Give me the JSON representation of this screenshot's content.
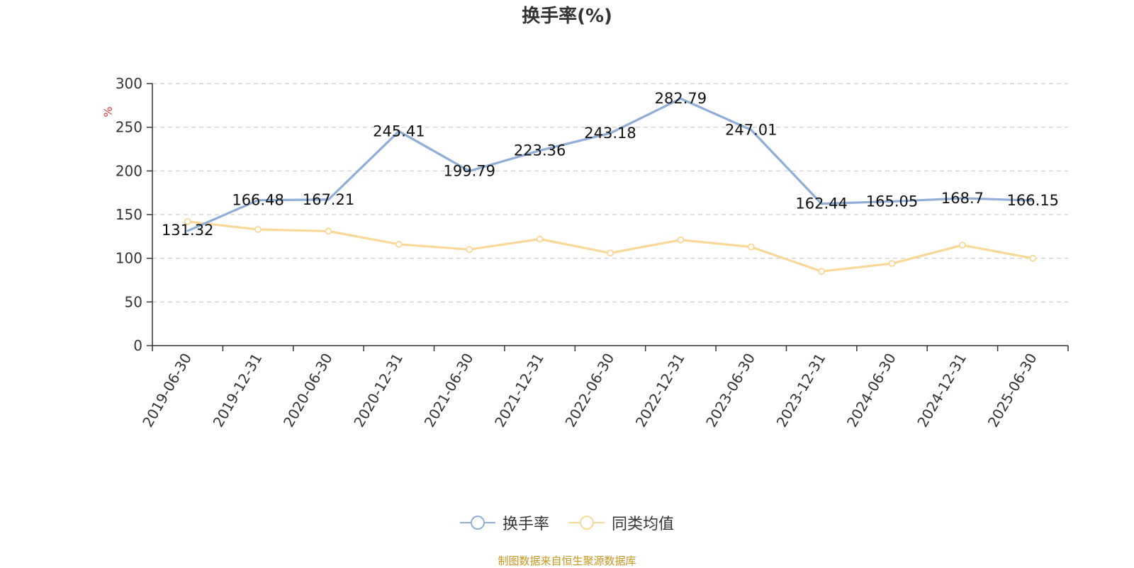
{
  "chart_data": {
    "type": "line",
    "title": "换手率(%)",
    "ylabel": "%",
    "ylim": [
      0,
      300
    ],
    "yticks": [
      0,
      50,
      100,
      150,
      200,
      250,
      300
    ],
    "grid": true,
    "legend_position": "bottom",
    "categories": [
      "2019-06-30",
      "2019-12-31",
      "2020-06-30",
      "2020-12-31",
      "2021-06-30",
      "2021-12-31",
      "2022-06-30",
      "2022-12-31",
      "2023-06-30",
      "2023-12-31",
      "2024-06-30",
      "2024-12-31",
      "2025-06-30"
    ],
    "series": [
      {
        "name": "换手率",
        "color": "#8eaed8",
        "values": [
          131.32,
          166.48,
          167.21,
          245.41,
          199.79,
          223.36,
          243.18,
          282.79,
          247.01,
          162.44,
          165.05,
          168.7,
          166.15
        ],
        "labels": [
          "131.32",
          "166.48",
          "167.21",
          "245.41",
          "199.79",
          "223.36",
          "243.18",
          "282.79",
          "247.01",
          "162.44",
          "165.05",
          "168.7",
          "166.15"
        ]
      },
      {
        "name": "同类均值",
        "color": "#fad797",
        "values": [
          142,
          133,
          131,
          116,
          110,
          122,
          106,
          121,
          113,
          85,
          94,
          115,
          100
        ]
      }
    ]
  },
  "footer": {
    "source": "制图数据来自恒生聚源数据库"
  }
}
